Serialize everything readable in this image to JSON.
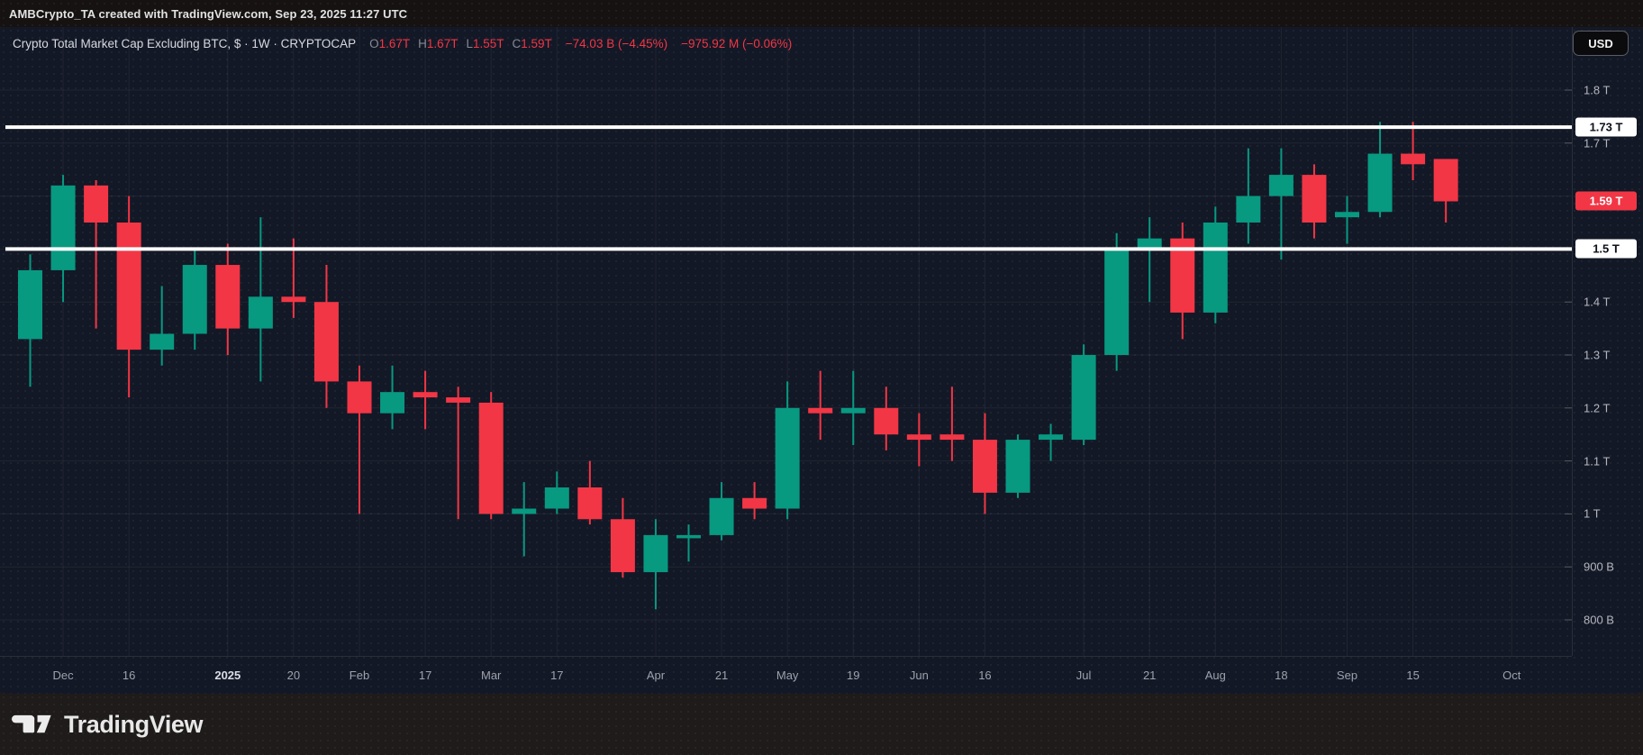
{
  "top_bar": {
    "text": "AMBCrypto_TA created with TradingView.com, Sep 23, 2025 11:27 UTC"
  },
  "legend": {
    "symbol": "Crypto Total Market Cap Excluding BTC, $ · 1W · CRYPTOCAP",
    "ohlc": [
      {
        "label": "O",
        "value": "1.67T"
      },
      {
        "label": "H",
        "value": "1.67T"
      },
      {
        "label": "L",
        "value": "1.55T"
      },
      {
        "label": "C",
        "value": "1.59T"
      }
    ],
    "change_abs": "−74.03 B (−4.45%)",
    "change_sess": "−975.92 M (−0.06%)"
  },
  "currency_button": {
    "label": "USD"
  },
  "price_axis": {
    "labels": [
      {
        "text": "1.8 T",
        "value": 1.8
      },
      {
        "text": "1.7 T",
        "value": 1.7
      },
      {
        "text": "1.4 T",
        "value": 1.4
      },
      {
        "text": "1.3 T",
        "value": 1.3
      },
      {
        "text": "1.2 T",
        "value": 1.2
      },
      {
        "text": "1.1 T",
        "value": 1.1
      },
      {
        "text": "1 T",
        "value": 1.0
      },
      {
        "text": "900 B",
        "value": 0.9
      },
      {
        "text": "800 B",
        "value": 0.8
      }
    ],
    "badges": [
      {
        "text": "1.73 T",
        "value": 1.73,
        "variant": "white"
      },
      {
        "text": "1.59 T",
        "value": 1.59,
        "variant": "red"
      },
      {
        "text": "1.5 T",
        "value": 1.5,
        "variant": "white"
      }
    ]
  },
  "time_axis": {
    "labels": [
      {
        "label": "Dec",
        "week": 1
      },
      {
        "label": "16",
        "week": 3
      },
      {
        "label": "2025",
        "week": 6
      },
      {
        "label": "20",
        "week": 8
      },
      {
        "label": "Feb",
        "week": 10
      },
      {
        "label": "17",
        "week": 12
      },
      {
        "label": "Mar",
        "week": 14
      },
      {
        "label": "17",
        "week": 16
      },
      {
        "label": "Apr",
        "week": 19
      },
      {
        "label": "21",
        "week": 21
      },
      {
        "label": "May",
        "week": 23
      },
      {
        "label": "19",
        "week": 25
      },
      {
        "label": "Jun",
        "week": 27
      },
      {
        "label": "16",
        "week": 29
      },
      {
        "label": "Jul",
        "week": 32
      },
      {
        "label": "21",
        "week": 34
      },
      {
        "label": "Aug",
        "week": 36
      },
      {
        "label": "18",
        "week": 38
      },
      {
        "label": "Sep",
        "week": 40
      },
      {
        "label": "15",
        "week": 42
      },
      {
        "label": "Oct",
        "week": 45
      }
    ]
  },
  "branding": {
    "wordmark": "TradingView"
  },
  "colors": {
    "up": "#089981",
    "down": "#f23645",
    "level_line": "#ffffff",
    "grid": "rgba(255,255,255,0.06)",
    "tick": "#565a64"
  },
  "chart_data": {
    "type": "candlestick",
    "title": "Crypto Total Market Cap Excluding BTC (CRYPTOCAP), 1W, USD",
    "unit": "trillion USD",
    "interval": "1W",
    "ylim": [
      0.78,
      1.92
    ],
    "grid": true,
    "legend_position": "top-left",
    "hlines": [
      1.73,
      1.5
    ],
    "candles": [
      {
        "d": "2024-11-25",
        "o": 1.33,
        "h": 1.49,
        "l": 1.24,
        "c": 1.46
      },
      {
        "d": "2024-12-02",
        "o": 1.46,
        "h": 1.64,
        "l": 1.4,
        "c": 1.62
      },
      {
        "d": "2024-12-09",
        "o": 1.62,
        "h": 1.63,
        "l": 1.35,
        "c": 1.55
      },
      {
        "d": "2024-12-16",
        "o": 1.55,
        "h": 1.6,
        "l": 1.22,
        "c": 1.31
      },
      {
        "d": "2024-12-23",
        "o": 1.31,
        "h": 1.43,
        "l": 1.28,
        "c": 1.34
      },
      {
        "d": "2024-12-30",
        "o": 1.34,
        "h": 1.5,
        "l": 1.31,
        "c": 1.47
      },
      {
        "d": "2025-01-06",
        "o": 1.47,
        "h": 1.51,
        "l": 1.3,
        "c": 1.35
      },
      {
        "d": "2025-01-13",
        "o": 1.35,
        "h": 1.56,
        "l": 1.25,
        "c": 1.41
      },
      {
        "d": "2025-01-20",
        "o": 1.41,
        "h": 1.52,
        "l": 1.37,
        "c": 1.4
      },
      {
        "d": "2025-01-27",
        "o": 1.4,
        "h": 1.47,
        "l": 1.2,
        "c": 1.25
      },
      {
        "d": "2025-02-03",
        "o": 1.25,
        "h": 1.28,
        "l": 1.0,
        "c": 1.19
      },
      {
        "d": "2025-02-10",
        "o": 1.19,
        "h": 1.28,
        "l": 1.16,
        "c": 1.23
      },
      {
        "d": "2025-02-17",
        "o": 1.23,
        "h": 1.27,
        "l": 1.16,
        "c": 1.22
      },
      {
        "d": "2025-02-24",
        "o": 1.22,
        "h": 1.24,
        "l": 0.99,
        "c": 1.21
      },
      {
        "d": "2025-03-03",
        "o": 1.21,
        "h": 1.23,
        "l": 0.99,
        "c": 1.0
      },
      {
        "d": "2025-03-10",
        "o": 1.0,
        "h": 1.06,
        "l": 0.92,
        "c": 1.01
      },
      {
        "d": "2025-03-17",
        "o": 1.01,
        "h": 1.08,
        "l": 1.0,
        "c": 1.05
      },
      {
        "d": "2025-03-24",
        "o": 1.05,
        "h": 1.1,
        "l": 0.98,
        "c": 0.99
      },
      {
        "d": "2025-03-31",
        "o": 0.99,
        "h": 1.03,
        "l": 0.88,
        "c": 0.89
      },
      {
        "d": "2025-04-07",
        "o": 0.89,
        "h": 0.99,
        "l": 0.82,
        "c": 0.96
      },
      {
        "d": "2025-04-14",
        "o": 0.96,
        "h": 0.98,
        "l": 0.91,
        "c": 0.96
      },
      {
        "d": "2025-04-21",
        "o": 0.96,
        "h": 1.06,
        "l": 0.95,
        "c": 1.03
      },
      {
        "d": "2025-04-28",
        "o": 1.03,
        "h": 1.06,
        "l": 0.99,
        "c": 1.01
      },
      {
        "d": "2025-05-05",
        "o": 1.01,
        "h": 1.25,
        "l": 0.99,
        "c": 1.2
      },
      {
        "d": "2025-05-12",
        "o": 1.2,
        "h": 1.27,
        "l": 1.14,
        "c": 1.19
      },
      {
        "d": "2025-05-19",
        "o": 1.19,
        "h": 1.27,
        "l": 1.13,
        "c": 1.2
      },
      {
        "d": "2025-05-26",
        "o": 1.2,
        "h": 1.24,
        "l": 1.12,
        "c": 1.15
      },
      {
        "d": "2025-06-02",
        "o": 1.15,
        "h": 1.19,
        "l": 1.09,
        "c": 1.14
      },
      {
        "d": "2025-06-09",
        "o": 1.15,
        "h": 1.24,
        "l": 1.1,
        "c": 1.14
      },
      {
        "d": "2025-06-16",
        "o": 1.14,
        "h": 1.19,
        "l": 1.0,
        "c": 1.04
      },
      {
        "d": "2025-06-23",
        "o": 1.04,
        "h": 1.15,
        "l": 1.03,
        "c": 1.14
      },
      {
        "d": "2025-06-30",
        "o": 1.14,
        "h": 1.17,
        "l": 1.1,
        "c": 1.15
      },
      {
        "d": "2025-07-07",
        "o": 1.14,
        "h": 1.32,
        "l": 1.13,
        "c": 1.3
      },
      {
        "d": "2025-07-14",
        "o": 1.3,
        "h": 1.53,
        "l": 1.27,
        "c": 1.5
      },
      {
        "d": "2025-07-21",
        "o": 1.5,
        "h": 1.56,
        "l": 1.4,
        "c": 1.52
      },
      {
        "d": "2025-07-28",
        "o": 1.52,
        "h": 1.55,
        "l": 1.33,
        "c": 1.38
      },
      {
        "d": "2025-08-04",
        "o": 1.38,
        "h": 1.58,
        "l": 1.36,
        "c": 1.55
      },
      {
        "d": "2025-08-11",
        "o": 1.55,
        "h": 1.69,
        "l": 1.51,
        "c": 1.6
      },
      {
        "d": "2025-08-18",
        "o": 1.6,
        "h": 1.69,
        "l": 1.48,
        "c": 1.64
      },
      {
        "d": "2025-08-25",
        "o": 1.64,
        "h": 1.66,
        "l": 1.52,
        "c": 1.55
      },
      {
        "d": "2025-09-01",
        "o": 1.56,
        "h": 1.6,
        "l": 1.51,
        "c": 1.57
      },
      {
        "d": "2025-09-08",
        "o": 1.57,
        "h": 1.74,
        "l": 1.56,
        "c": 1.68
      },
      {
        "d": "2025-09-15",
        "o": 1.68,
        "h": 1.74,
        "l": 1.63,
        "c": 1.66
      },
      {
        "d": "2025-09-22",
        "o": 1.67,
        "h": 1.67,
        "l": 1.55,
        "c": 1.59
      }
    ]
  }
}
